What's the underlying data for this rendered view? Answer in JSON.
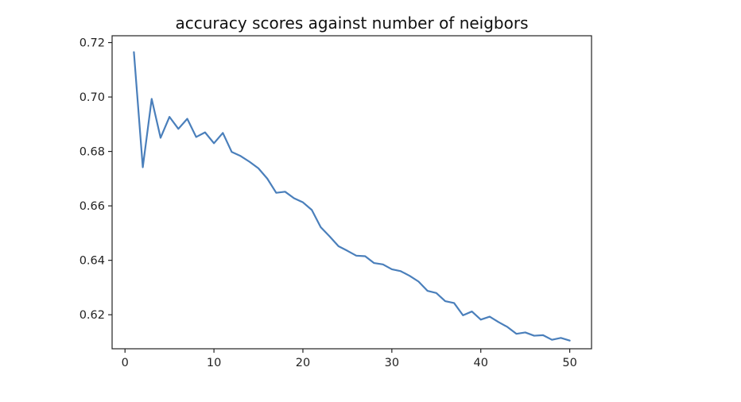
{
  "chart_data": {
    "type": "line",
    "title": "accuracy scores against number of neigbors",
    "xlabel": "",
    "ylabel": "",
    "xlim": [
      -1.45,
      52.45
    ],
    "ylim": [
      0.6075,
      0.7225
    ],
    "xticks": [
      0,
      10,
      20,
      30,
      40,
      50
    ],
    "yticks": [
      0.62,
      0.64,
      0.66,
      0.68,
      0.7,
      0.72
    ],
    "ytick_labels": [
      "0.62",
      "0.64",
      "0.66",
      "0.68",
      "0.70",
      "0.72"
    ],
    "xtick_labels": [
      "0",
      "10",
      "20",
      "30",
      "40",
      "50"
    ],
    "grid": false,
    "series": [
      {
        "color": "#4a7fbb",
        "x": [
          1,
          2,
          3,
          4,
          5,
          6,
          7,
          8,
          9,
          10,
          11,
          12,
          13,
          14,
          15,
          16,
          17,
          18,
          19,
          20,
          21,
          22,
          23,
          24,
          25,
          26,
          27,
          28,
          29,
          30,
          31,
          32,
          33,
          34,
          35,
          36,
          37,
          38,
          39,
          40,
          41,
          42,
          43,
          44,
          45,
          46,
          47,
          48,
          49,
          50
        ],
        "values": [
          0.7165,
          0.6742,
          0.6993,
          0.685,
          0.6927,
          0.6883,
          0.692,
          0.6853,
          0.687,
          0.683,
          0.6868,
          0.6798,
          0.6783,
          0.6762,
          0.6738,
          0.67,
          0.6648,
          0.6652,
          0.6628,
          0.6613,
          0.6585,
          0.6522,
          0.6488,
          0.6452,
          0.6435,
          0.6417,
          0.6415,
          0.639,
          0.6385,
          0.6367,
          0.636,
          0.6343,
          0.6322,
          0.6288,
          0.628,
          0.625,
          0.6243,
          0.6198,
          0.6212,
          0.6182,
          0.6193,
          0.6173,
          0.6155,
          0.613,
          0.6135,
          0.6123,
          0.6125,
          0.6108,
          0.6115,
          0.6105
        ]
      }
    ]
  }
}
